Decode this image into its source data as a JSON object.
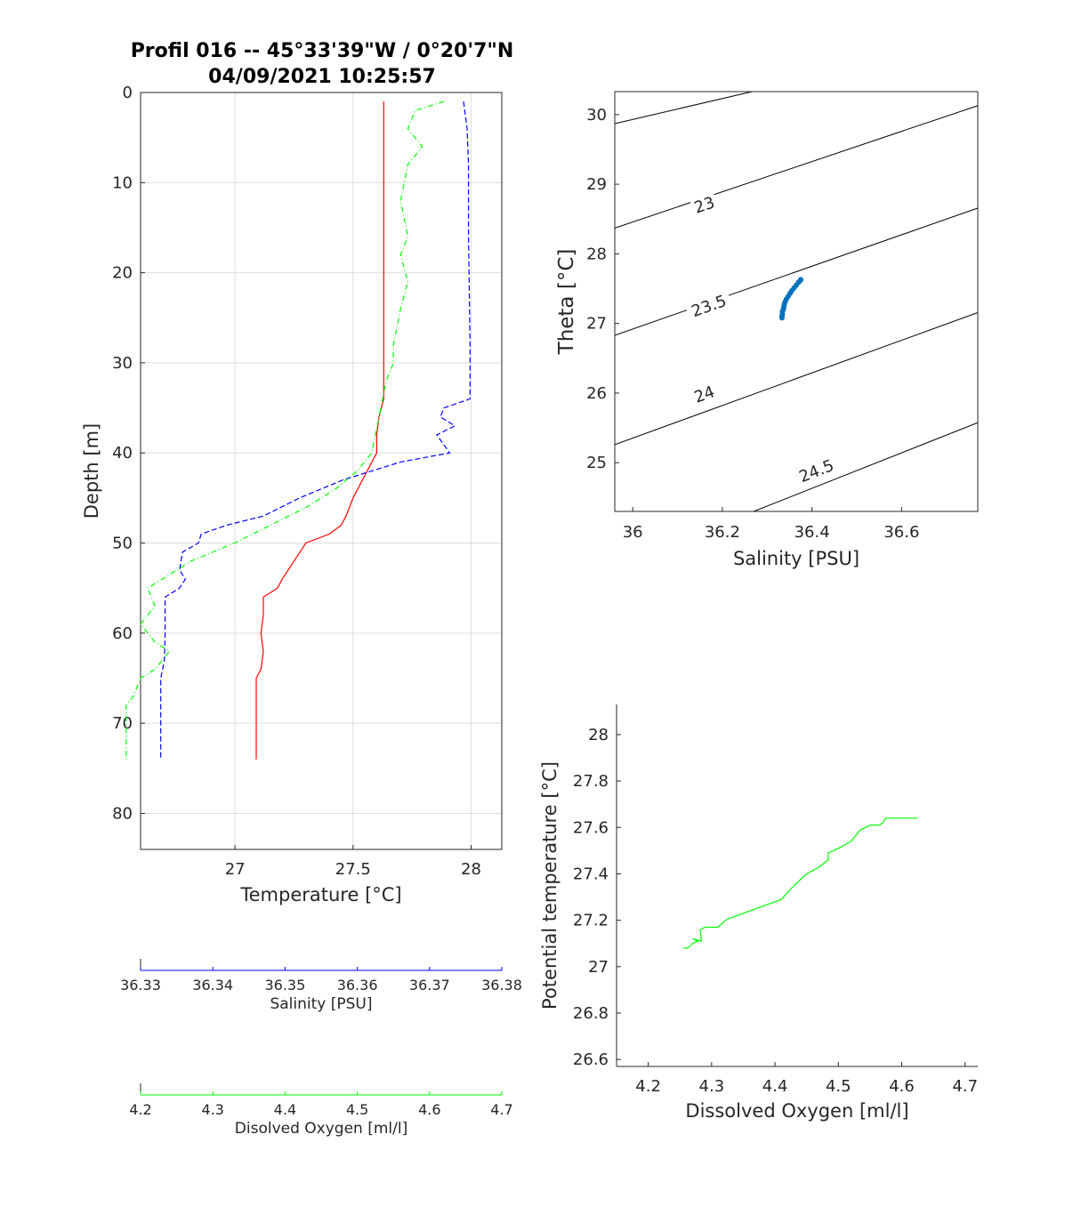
{
  "title_line1": "Profil 016 -- 45°33'39\"W / 0°20'7\"N",
  "title_line2": "04/09/2021 10:25:57",
  "colors": {
    "temperature": "#ff0000",
    "salinity": "#0000ff",
    "oxygen": "#00ff00",
    "ts_points": "#0072bd",
    "density": "#000000"
  },
  "chart_data": [
    {
      "type": "line",
      "id": "profile",
      "ylabel": "Depth [m]",
      "xlabel": "Temperature [°C]",
      "ylim": [
        0,
        84
      ],
      "y_reversed": true,
      "xlim": [
        26.6,
        28.13
      ],
      "yticks": [
        0,
        10,
        20,
        30,
        40,
        50,
        60,
        70,
        80
      ],
      "xticks": [
        27,
        27.5,
        28
      ],
      "xticklabels": [
        "27",
        "27.5",
        "28"
      ],
      "grid": true,
      "series": [
        {
          "quantity": "temperature",
          "axis": "temperature",
          "style": "solid",
          "points": [
            [
              27.63,
              1
            ],
            [
              27.63,
              10
            ],
            [
              27.63,
              20
            ],
            [
              27.63,
              30
            ],
            [
              27.63,
              34
            ],
            [
              27.61,
              36
            ],
            [
              27.6,
              38
            ],
            [
              27.6,
              40
            ],
            [
              27.56,
              42
            ],
            [
              27.52,
              44
            ],
            [
              27.5,
              45
            ],
            [
              27.47,
              47
            ],
            [
              27.45,
              48
            ],
            [
              27.4,
              49
            ],
            [
              27.3,
              50
            ],
            [
              27.25,
              52
            ],
            [
              27.2,
              54
            ],
            [
              27.18,
              55
            ],
            [
              27.12,
              56
            ],
            [
              27.12,
              58
            ],
            [
              27.11,
              60
            ],
            [
              27.12,
              62
            ],
            [
              27.11,
              64
            ],
            [
              27.09,
              65
            ],
            [
              27.09,
              70
            ],
            [
              27.09,
              74
            ]
          ]
        },
        {
          "quantity": "salinity",
          "axis": "salinity",
          "style": "dashed",
          "points": [
            [
              36.3747,
              1
            ],
            [
              36.3752,
              4
            ],
            [
              36.3754,
              8
            ],
            [
              36.3754,
              16
            ],
            [
              36.3756,
              28
            ],
            [
              36.3756,
              34
            ],
            [
              36.372,
              35
            ],
            [
              36.3715,
              36
            ],
            [
              36.3735,
              37
            ],
            [
              36.371,
              38
            ],
            [
              36.3728,
              40
            ],
            [
              36.366,
              41
            ],
            [
              36.358,
              43
            ],
            [
              36.352,
              45
            ],
            [
              36.347,
              47
            ],
            [
              36.342,
              48
            ],
            [
              36.3384,
              49
            ],
            [
              36.338,
              50
            ],
            [
              36.3358,
              51
            ],
            [
              36.3354,
              53
            ],
            [
              36.3362,
              54
            ],
            [
              36.3354,
              55
            ],
            [
              36.3334,
              56
            ],
            [
              36.3334,
              60
            ],
            [
              36.3333,
              63
            ],
            [
              36.3328,
              65
            ],
            [
              36.3328,
              70
            ],
            [
              36.3328,
              74
            ]
          ]
        },
        {
          "quantity": "oxygen",
          "axis": "oxygen",
          "style": "dashdot",
          "points": [
            [
              4.62,
              1
            ],
            [
              4.58,
              2
            ],
            [
              4.57,
              4
            ],
            [
              4.59,
              6
            ],
            [
              4.57,
              8
            ],
            [
              4.56,
              12
            ],
            [
              4.57,
              16
            ],
            [
              4.56,
              18
            ],
            [
              4.57,
              21
            ],
            [
              4.56,
              24
            ],
            [
              4.55,
              28
            ],
            [
              4.55,
              30
            ],
            [
              4.54,
              32
            ],
            [
              4.53,
              36
            ],
            [
              4.52,
              40
            ],
            [
              4.5,
              42
            ],
            [
              4.47,
              44
            ],
            [
              4.43,
              46
            ],
            [
              4.38,
              48
            ],
            [
              4.33,
              50
            ],
            [
              4.27,
              52
            ],
            [
              4.25,
              53
            ],
            [
              4.21,
              55
            ],
            [
              4.22,
              57
            ],
            [
              4.2,
              59
            ],
            [
              4.22,
              61
            ],
            [
              4.24,
              62
            ],
            [
              4.22,
              64
            ],
            [
              4.2,
              65
            ],
            [
              4.19,
              67
            ],
            [
              4.18,
              68
            ],
            [
              4.18,
              70
            ],
            [
              4.18,
              74
            ]
          ]
        }
      ]
    },
    {
      "type": "line",
      "id": "salinity_axis",
      "xlabel": "Salinity [PSU]",
      "xlim": [
        36.33,
        36.38
      ],
      "xticks": [
        36.33,
        36.34,
        36.35,
        36.36,
        36.37,
        36.38
      ],
      "xticklabels": [
        "36.33",
        "36.34",
        "36.35",
        "36.36",
        "36.37",
        "36.38"
      ]
    },
    {
      "type": "line",
      "id": "oxygen_axis",
      "xlabel": "Disolved Oxygen [ml/l]",
      "xlim": [
        4.2,
        4.7
      ],
      "xticks": [
        4.2,
        4.3,
        4.4,
        4.5,
        4.6,
        4.7
      ],
      "xticklabels": [
        "4.2",
        "4.3",
        "4.4",
        "4.5",
        "4.6",
        "4.7"
      ]
    },
    {
      "type": "scatter",
      "id": "ts_diagram",
      "xlabel": "Salinity [PSU]",
      "ylabel": "Theta [°C]",
      "xlim": [
        35.96,
        36.77
      ],
      "ylim": [
        24.3,
        30.33
      ],
      "xticks": [
        36,
        36.2,
        36.4,
        36.6
      ],
      "xticklabels": [
        "36",
        "36.2",
        "36.4",
        "36.6"
      ],
      "yticks": [
        25,
        26,
        27,
        28,
        29,
        30
      ],
      "yticklabels": [
        "25",
        "26",
        "27",
        "28",
        "29",
        "30"
      ],
      "grid": false,
      "points": [
        [
          36.333,
          27.08
        ],
        [
          36.333,
          27.1
        ],
        [
          36.334,
          27.13
        ],
        [
          36.334,
          27.17
        ],
        [
          36.336,
          27.2
        ],
        [
          36.337,
          27.23
        ],
        [
          36.338,
          27.27
        ],
        [
          36.34,
          27.31
        ],
        [
          36.343,
          27.35
        ],
        [
          36.347,
          27.39
        ],
        [
          36.351,
          27.43
        ],
        [
          36.355,
          27.47
        ],
        [
          36.36,
          27.51
        ],
        [
          36.365,
          27.55
        ],
        [
          36.37,
          27.59
        ],
        [
          36.374,
          27.62
        ],
        [
          36.375,
          27.63
        ]
      ],
      "density_contours": [
        {
          "label": "",
          "points": [
            [
              35.96,
              29.87
            ],
            [
              36.78,
              31.1
            ]
          ]
        },
        {
          "label": "23",
          "label_at": [
            36.16,
            28.7
          ],
          "points": [
            [
              35.96,
              28.37
            ],
            [
              36.78,
              30.15
            ]
          ]
        },
        {
          "label": "23.5",
          "label_at": [
            36.17,
            27.25
          ],
          "points": [
            [
              35.96,
              26.83
            ],
            [
              36.78,
              28.68
            ]
          ]
        },
        {
          "label": "24",
          "label_at": [
            36.16,
            25.98
          ],
          "points": [
            [
              35.96,
              25.26
            ],
            [
              36.78,
              27.18
            ]
          ]
        },
        {
          "label": "24.5",
          "label_at": [
            36.41,
            24.88
          ],
          "points": [
            [
              36.27,
              24.3
            ],
            [
              36.78,
              25.6
            ]
          ]
        }
      ]
    },
    {
      "type": "line",
      "id": "oxygen_theta",
      "xlabel": "Dissolved Oxygen [ml/l]",
      "ylabel": "Potential temperature [°C]",
      "xlim": [
        4.15,
        4.72
      ],
      "ylim": [
        26.57,
        28.13
      ],
      "xticks": [
        4.2,
        4.3,
        4.4,
        4.5,
        4.6,
        4.7
      ],
      "xticklabels": [
        "4.2",
        "4.3",
        "4.4",
        "4.5",
        "4.6",
        "4.7"
      ],
      "yticks": [
        26.6,
        26.8,
        27,
        27.2,
        27.4,
        27.6,
        27.8,
        28
      ],
      "yticklabels": [
        "26.6",
        "26.8",
        "27",
        "27.2",
        "27.4",
        "27.6",
        "27.8",
        "28"
      ],
      "grid": false,
      "points": [
        [
          4.255,
          27.08
        ],
        [
          4.262,
          27.08
        ],
        [
          4.27,
          27.1
        ],
        [
          4.278,
          27.11
        ],
        [
          4.27,
          27.12
        ],
        [
          4.284,
          27.11
        ],
        [
          4.282,
          27.16
        ],
        [
          4.29,
          27.17
        ],
        [
          4.31,
          27.17
        ],
        [
          4.322,
          27.2
        ],
        [
          4.33,
          27.21
        ],
        [
          4.35,
          27.23
        ],
        [
          4.37,
          27.25
        ],
        [
          4.39,
          27.27
        ],
        [
          4.41,
          27.29
        ],
        [
          4.43,
          27.35
        ],
        [
          4.45,
          27.4
        ],
        [
          4.47,
          27.43
        ],
        [
          4.484,
          27.46
        ],
        [
          4.484,
          27.49
        ],
        [
          4.5,
          27.51
        ],
        [
          4.52,
          27.54
        ],
        [
          4.535,
          27.59
        ],
        [
          4.55,
          27.61
        ],
        [
          4.565,
          27.61
        ],
        [
          4.57,
          27.62
        ],
        [
          4.575,
          27.64
        ],
        [
          4.6,
          27.64
        ],
        [
          4.625,
          27.64
        ]
      ]
    }
  ]
}
